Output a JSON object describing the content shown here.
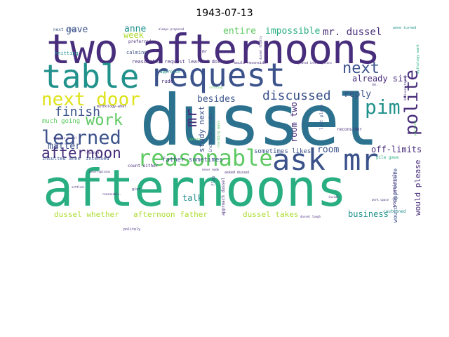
{
  "title": "1943-07-13",
  "colors": {
    "purple": "#472d7b",
    "indigo": "#3b528b",
    "blue": "#2c728e",
    "teal": "#21918c",
    "green": "#28ae80",
    "lightgreen": "#5ec962",
    "lime": "#addc30",
    "yellow": "#dde318"
  },
  "words": [
    {
      "text": "afternoons"
    },
    {
      "text": "two afternoons"
    },
    {
      "text": "dussel"
    },
    {
      "text": "table"
    },
    {
      "text": "request"
    },
    {
      "text": "ask mr"
    },
    {
      "text": "reasonable"
    },
    {
      "text": "next door"
    },
    {
      "text": "learned"
    },
    {
      "text": "afternoon"
    },
    {
      "text": "polite"
    },
    {
      "text": "next"
    },
    {
      "text": "pim"
    },
    {
      "text": "work"
    },
    {
      "text": "finish"
    },
    {
      "text": "discussed"
    },
    {
      "text": "mr"
    },
    {
      "text": "mr. dussel"
    },
    {
      "text": "entire"
    },
    {
      "text": "impossible"
    },
    {
      "text": "gave"
    },
    {
      "text": "anne"
    },
    {
      "text": "week"
    },
    {
      "text": "matter"
    },
    {
      "text": "reply"
    },
    {
      "text": "besides"
    },
    {
      "text": "already sit"
    },
    {
      "text": "room"
    },
    {
      "text": "off-limits"
    },
    {
      "text": "room two"
    },
    {
      "text": "study next"
    },
    {
      "text": "business"
    },
    {
      "text": "talk"
    },
    {
      "text": "dussel whether"
    },
    {
      "text": "afternoon father"
    },
    {
      "text": "dussel takes"
    },
    {
      "text": "would please"
    },
    {
      "text": "father sometimes"
    },
    {
      "text": "sometimes likes"
    },
    {
      "text": "much going"
    },
    {
      "text": "next step"
    },
    {
      "text": "preferred"
    },
    {
      "text": "calming"
    },
    {
      "text": "knitting"
    },
    {
      "text": "reasonable request"
    },
    {
      "text": "learned doctor"
    },
    {
      "text": "approach"
    },
    {
      "text": "rude"
    },
    {
      "text": "mythology-what"
    },
    {
      "text": "incensed"
    },
    {
      "text": "insulted anne"
    },
    {
      "text": "count either"
    },
    {
      "text": "politely"
    },
    {
      "text": "cautioned"
    },
    {
      "text": "would appreciate"
    },
    {
      "text": "approach dussel"
    },
    {
      "text": "incredibly rude"
    },
    {
      "text": "charming ways"
    },
    {
      "text": "last place"
    },
    {
      "text": "flop"
    },
    {
      "text": "reconsider"
    },
    {
      "text": "work seriously"
    },
    {
      "text": "pile gave"
    },
    {
      "text": "anne turned"
    },
    {
      "text": "always prepared"
    },
    {
      "text": "despite dussel"
    },
    {
      "text": "asked dussel"
    },
    {
      "text": "gist"
    },
    {
      "text": "dussel laugh"
    },
    {
      "text": "ignore"
    },
    {
      "text": "no."
    },
    {
      "text": "mr"
    },
    {
      "text": "repeated interruptions"
    },
    {
      "text": "dussel finally"
    },
    {
      "text": "would reconsider"
    },
    {
      "text": "mythology want"
    },
    {
      "text": "business takes"
    },
    {
      "text": "pointless"
    },
    {
      "text": "work space"
    },
    {
      "text": "inside"
    },
    {
      "text": "settled."
    },
    {
      "text": "reasonable."
    },
    {
      "text": "interruptions"
    },
    {
      "text": "never made"
    },
    {
      "text": "repeated"
    },
    {
      "text": "refusing"
    }
  ]
}
